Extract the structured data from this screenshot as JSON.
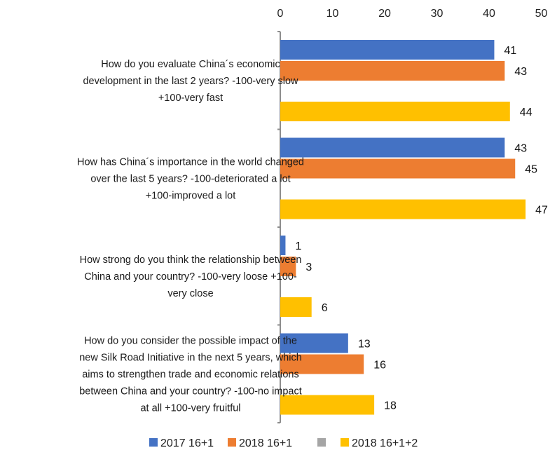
{
  "chart_data": {
    "type": "bar",
    "orientation": "horizontal",
    "title": "",
    "xlabel": "",
    "ylabel": "",
    "xlim": [
      0,
      50
    ],
    "x_ticks": [
      "0",
      "10",
      "20",
      "30",
      "40",
      "50"
    ],
    "x_axis_position": "top",
    "grid": false,
    "legend_position": "bottom",
    "categories": [
      "How do you evaluate China´s economic development in the last 2 years? -100-very slow +100-very fast",
      "How has China´s importance in the world changed over the last 5 years? -100-deteriorated a lot +100-improved a lot",
      "How strong do you think the relationship between China and your country? -100-very loose +100-very close",
      "How do you consider the possible impact of the new Silk Road Initiative in the next 5 years, which aims to strengthen trade and economic relations between China and your country? -100-no impact at all +100-very fruitful"
    ],
    "category_lines": [
      [
        "How do you evaluate China´s economic",
        "development in the last 2 years? -100-very slow",
        "+100-very fast"
      ],
      [
        "How has China´s importance in the world changed",
        "over the last 5 years? -100-deteriorated a lot",
        "+100-improved a lot"
      ],
      [
        "How strong do you think the relationship between",
        "China and your country? -100-very loose +100-",
        "very close"
      ],
      [
        "How do you consider the possible impact of the",
        "new Silk Road Initiative in the next 5 years, which",
        "aims to strengthen trade and economic relations",
        "between China and your country? -100-no impact",
        "at all +100-very fruitful"
      ]
    ],
    "series": [
      {
        "name": "2017 16+1",
        "color": "#4472C4",
        "values": [
          41,
          43,
          1,
          13
        ]
      },
      {
        "name": "2018 16+1",
        "color": "#ED7D31",
        "values": [
          43,
          45,
          3,
          16
        ]
      },
      {
        "name": "",
        "color": "#A5A5A5",
        "values": [
          null,
          null,
          null,
          null
        ]
      },
      {
        "name": "2018 16+1+2",
        "color": "#FFC000",
        "values": [
          44,
          47,
          6,
          18
        ]
      }
    ]
  }
}
